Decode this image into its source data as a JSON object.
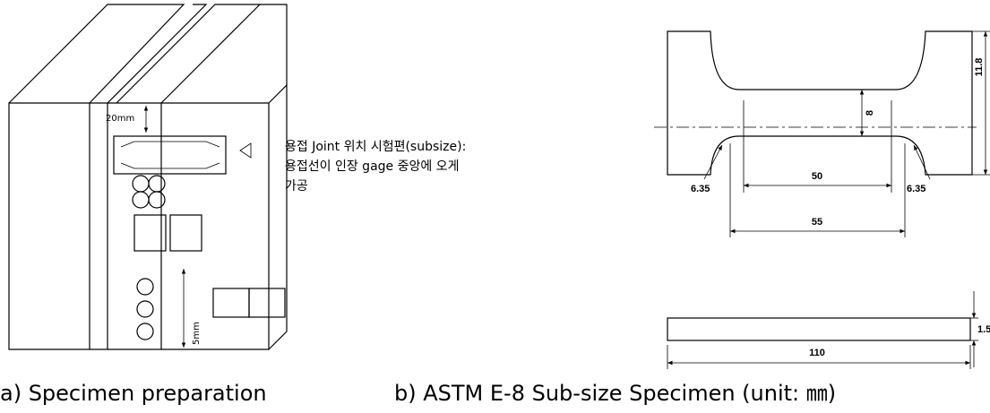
{
  "left_figure": {
    "dimension_top": "20mm",
    "dimension_bottom": "5mm",
    "note_lines": [
      "용접 Joint 위치 시험편(subsize):",
      "용접선이 인장 gage 중앙에 오게",
      "가공"
    ],
    "caption": "a) Specimen preparation"
  },
  "right_figure": {
    "dimensions": {
      "height": "11.8",
      "gauge_width": "8",
      "gauge_length": "50",
      "radius_left": "6.35",
      "radius_right": "6.35",
      "reduced_length": "55",
      "thickness": "1.5",
      "overall_length": "110"
    },
    "caption": "b) ASTM E-8 Sub-size Specimen (unit: ㎜)"
  }
}
